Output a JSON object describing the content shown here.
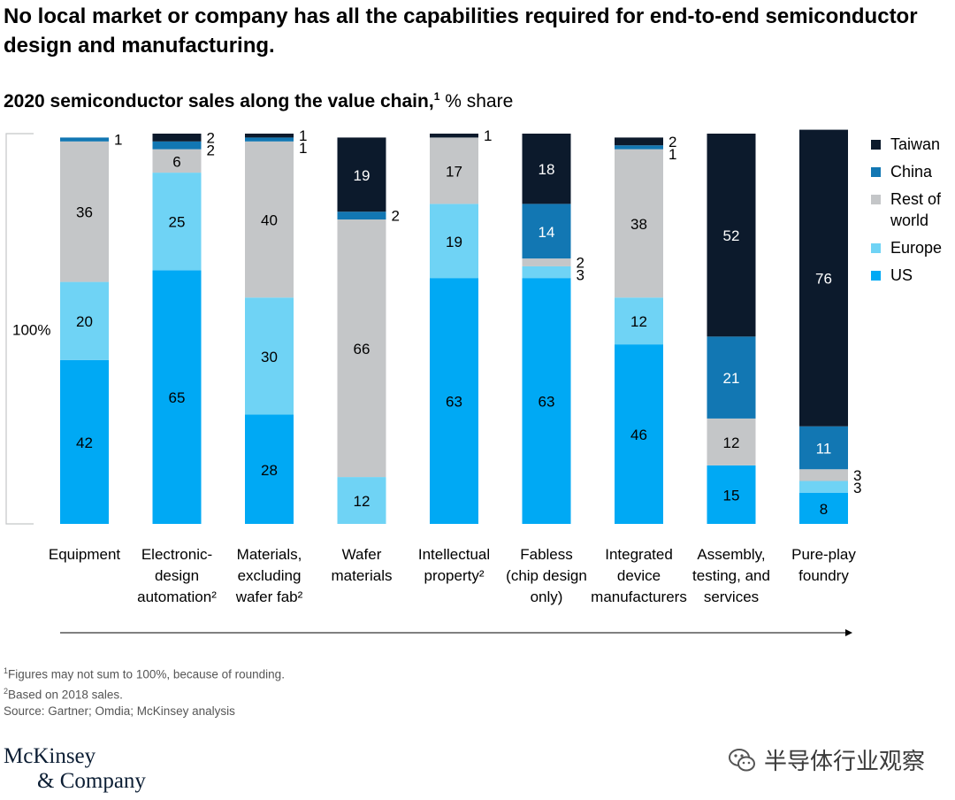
{
  "title": "No local market or company has all the capabilities required for end-to-end semiconductor design and manufacturing.",
  "subtitle": {
    "bold": "2020 semiconductor sales along the value chain,",
    "sup": "1",
    "rest": " % share"
  },
  "chart_data": {
    "type": "bar",
    "stacked": true,
    "scale_label": "100%",
    "categories": [
      [
        "Equipment"
      ],
      [
        "Electronic-",
        "design",
        "automation²"
      ],
      [
        "Materials,",
        "excluding",
        "wafer fab²"
      ],
      [
        "Wafer",
        "materials"
      ],
      [
        "Intellectual",
        "property²"
      ],
      [
        "Fabless",
        "(chip design",
        "only)"
      ],
      [
        "Integrated",
        "device",
        "manufacturers"
      ],
      [
        "Assembly,",
        "testing, and",
        "services"
      ],
      [
        "Pure-play",
        "foundry"
      ]
    ],
    "series": [
      {
        "name": "US",
        "color": "#00a9f4",
        "values": [
          42,
          65,
          28,
          0,
          63,
          63,
          46,
          15,
          8
        ]
      },
      {
        "name": "Europe",
        "color": "#6fd3f5",
        "values": [
          20,
          25,
          30,
          12,
          19,
          3,
          12,
          0,
          3
        ]
      },
      {
        "name": "Rest of world",
        "color": "#c4c6c8",
        "values": [
          36,
          6,
          40,
          66,
          17,
          2,
          38,
          12,
          3
        ]
      },
      {
        "name": "China",
        "color": "#1277b3",
        "values": [
          1,
          2,
          1,
          2,
          0,
          14,
          1,
          21,
          11
        ]
      },
      {
        "name": "Taiwan",
        "color": "#0c1a2c",
        "values": [
          0,
          2,
          1,
          19,
          1,
          18,
          2,
          52,
          76
        ]
      }
    ],
    "legend": [
      {
        "name": [
          "Taiwan"
        ],
        "color": "#0c1a2c"
      },
      {
        "name": [
          "China"
        ],
        "color": "#1277b3"
      },
      {
        "name": [
          "Rest of",
          "world"
        ],
        "color": "#c4c6c8"
      },
      {
        "name": [
          "Europe"
        ],
        "color": "#6fd3f5"
      },
      {
        "name": [
          "US"
        ],
        "color": "#00a9f4"
      }
    ],
    "ylim": [
      0,
      100
    ],
    "legend_position": "right"
  },
  "footnotes": {
    "note1_sup": "1",
    "note1": "Figures may not sum to 100%, because of rounding.",
    "note2_sup": "2",
    "note2": "Based on 2018 sales.",
    "source": " Source: Gartner; Omdia; McKinsey analysis"
  },
  "logo": {
    "line1": "McKinsey",
    "line2": "& Company"
  },
  "watermark": "半导体行业观察"
}
